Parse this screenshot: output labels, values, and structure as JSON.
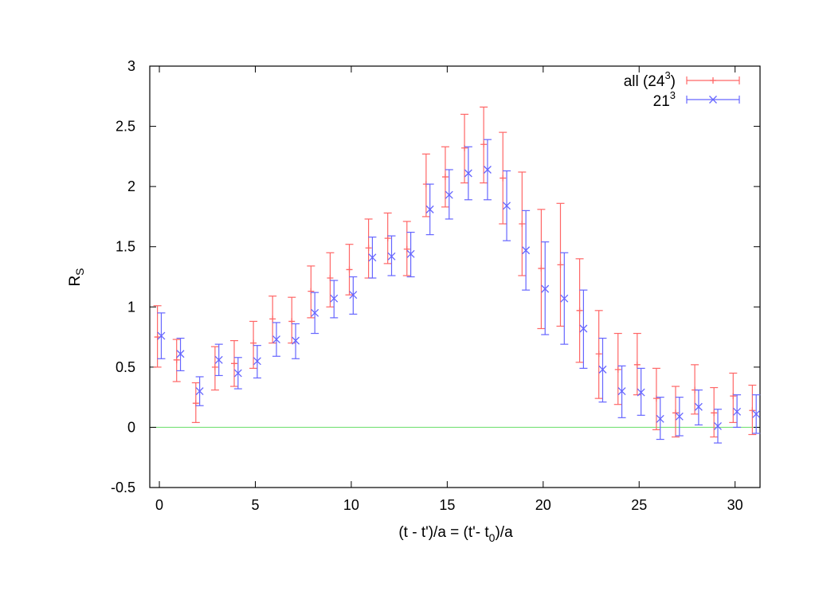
{
  "chart_data": {
    "type": "scatter",
    "title": "",
    "xlabel": {
      "main": "(t - t')/a = (t'- t",
      "sub": "0",
      "tail": ")/a"
    },
    "ylabel": {
      "main": "R",
      "sub": "S"
    },
    "xlim": [
      -0.5,
      31.3
    ],
    "ylim": [
      -0.5,
      3
    ],
    "xticks": [
      0,
      5,
      10,
      15,
      20,
      25,
      30
    ],
    "yticks": [
      -0.5,
      0,
      0.5,
      1,
      1.5,
      2,
      2.5,
      3
    ],
    "grid": false,
    "legend_position": "top-right",
    "reference_line": {
      "y": 0,
      "color": "#66dd66"
    },
    "series": [
      {
        "name": "all (24³)",
        "legend": {
          "pre": "all (24",
          "sup": "3",
          "post": ")"
        },
        "color": "#ff6666",
        "marker": "plus",
        "points": [
          {
            "x": -0.1,
            "y": 0.75,
            "lo": 0.5,
            "hi": 1.01
          },
          {
            "x": 0.9,
            "y": 0.56,
            "lo": 0.38,
            "hi": 0.73
          },
          {
            "x": 1.9,
            "y": 0.2,
            "lo": 0.04,
            "hi": 0.37
          },
          {
            "x": 2.9,
            "y": 0.5,
            "lo": 0.31,
            "hi": 0.67
          },
          {
            "x": 3.9,
            "y": 0.53,
            "lo": 0.34,
            "hi": 0.72
          },
          {
            "x": 4.9,
            "y": 0.7,
            "lo": 0.49,
            "hi": 0.88
          },
          {
            "x": 5.9,
            "y": 0.9,
            "lo": 0.7,
            "hi": 1.09
          },
          {
            "x": 6.9,
            "y": 0.88,
            "lo": 0.7,
            "hi": 1.08
          },
          {
            "x": 7.9,
            "y": 1.13,
            "lo": 0.91,
            "hi": 1.34
          },
          {
            "x": 8.9,
            "y": 1.24,
            "lo": 1.0,
            "hi": 1.45
          },
          {
            "x": 9.9,
            "y": 1.31,
            "lo": 1.1,
            "hi": 1.52
          },
          {
            "x": 10.9,
            "y": 1.49,
            "lo": 1.24,
            "hi": 1.73
          },
          {
            "x": 11.9,
            "y": 1.57,
            "lo": 1.36,
            "hi": 1.78
          },
          {
            "x": 12.9,
            "y": 1.48,
            "lo": 1.26,
            "hi": 1.71
          },
          {
            "x": 13.9,
            "y": 2.02,
            "lo": 1.75,
            "hi": 2.27
          },
          {
            "x": 14.9,
            "y": 2.08,
            "lo": 1.83,
            "hi": 2.33
          },
          {
            "x": 15.9,
            "y": 2.32,
            "lo": 2.03,
            "hi": 2.6
          },
          {
            "x": 16.9,
            "y": 2.35,
            "lo": 2.03,
            "hi": 2.66
          },
          {
            "x": 17.9,
            "y": 2.07,
            "lo": 1.69,
            "hi": 2.45
          },
          {
            "x": 18.9,
            "y": 1.69,
            "lo": 1.26,
            "hi": 2.12
          },
          {
            "x": 19.9,
            "y": 1.32,
            "lo": 0.82,
            "hi": 1.81
          },
          {
            "x": 20.9,
            "y": 1.35,
            "lo": 0.84,
            "hi": 1.86
          },
          {
            "x": 21.9,
            "y": 0.97,
            "lo": 0.54,
            "hi": 1.4
          },
          {
            "x": 22.9,
            "y": 0.61,
            "lo": 0.24,
            "hi": 0.97
          },
          {
            "x": 23.9,
            "y": 0.48,
            "lo": 0.19,
            "hi": 0.78
          },
          {
            "x": 24.9,
            "y": 0.52,
            "lo": 0.27,
            "hi": 0.78
          },
          {
            "x": 25.9,
            "y": 0.24,
            "lo": -0.02,
            "hi": 0.49
          },
          {
            "x": 26.9,
            "y": 0.12,
            "lo": -0.08,
            "hi": 0.34
          },
          {
            "x": 27.9,
            "y": 0.31,
            "lo": 0.11,
            "hi": 0.52
          },
          {
            "x": 28.9,
            "y": 0.12,
            "lo": -0.08,
            "hi": 0.33
          },
          {
            "x": 29.9,
            "y": 0.26,
            "lo": 0.04,
            "hi": 0.45
          },
          {
            "x": 30.9,
            "y": 0.14,
            "lo": -0.06,
            "hi": 0.35
          }
        ]
      },
      {
        "name": "21³",
        "legend": {
          "pre": "21",
          "sup": "3",
          "post": ""
        },
        "color": "#6666ff",
        "marker": "x",
        "points": [
          {
            "x": 0.1,
            "y": 0.76,
            "lo": 0.57,
            "hi": 0.95
          },
          {
            "x": 1.1,
            "y": 0.61,
            "lo": 0.47,
            "hi": 0.74
          },
          {
            "x": 2.1,
            "y": 0.3,
            "lo": 0.18,
            "hi": 0.42
          },
          {
            "x": 3.1,
            "y": 0.56,
            "lo": 0.43,
            "hi": 0.69
          },
          {
            "x": 4.1,
            "y": 0.45,
            "lo": 0.32,
            "hi": 0.58
          },
          {
            "x": 5.1,
            "y": 0.55,
            "lo": 0.41,
            "hi": 0.68
          },
          {
            "x": 6.1,
            "y": 0.73,
            "lo": 0.59,
            "hi": 0.87
          },
          {
            "x": 7.1,
            "y": 0.72,
            "lo": 0.57,
            "hi": 0.86
          },
          {
            "x": 8.1,
            "y": 0.95,
            "lo": 0.78,
            "hi": 1.12
          },
          {
            "x": 9.1,
            "y": 1.07,
            "lo": 0.91,
            "hi": 1.22
          },
          {
            "x": 10.1,
            "y": 1.1,
            "lo": 0.94,
            "hi": 1.25
          },
          {
            "x": 11.1,
            "y": 1.41,
            "lo": 1.24,
            "hi": 1.58
          },
          {
            "x": 12.1,
            "y": 1.42,
            "lo": 1.26,
            "hi": 1.59
          },
          {
            "x": 13.1,
            "y": 1.44,
            "lo": 1.25,
            "hi": 1.62
          },
          {
            "x": 14.1,
            "y": 1.81,
            "lo": 1.6,
            "hi": 2.02
          },
          {
            "x": 15.1,
            "y": 1.93,
            "lo": 1.73,
            "hi": 2.14
          },
          {
            "x": 16.1,
            "y": 2.11,
            "lo": 1.89,
            "hi": 2.33
          },
          {
            "x": 17.1,
            "y": 2.14,
            "lo": 1.89,
            "hi": 2.39
          },
          {
            "x": 18.1,
            "y": 1.84,
            "lo": 1.55,
            "hi": 2.13
          },
          {
            "x": 19.1,
            "y": 1.47,
            "lo": 1.14,
            "hi": 1.8
          },
          {
            "x": 20.1,
            "y": 1.15,
            "lo": 0.77,
            "hi": 1.54
          },
          {
            "x": 21.1,
            "y": 1.07,
            "lo": 0.69,
            "hi": 1.45
          },
          {
            "x": 22.1,
            "y": 0.82,
            "lo": 0.49,
            "hi": 1.14
          },
          {
            "x": 23.1,
            "y": 0.48,
            "lo": 0.21,
            "hi": 0.74
          },
          {
            "x": 24.1,
            "y": 0.3,
            "lo": 0.08,
            "hi": 0.51
          },
          {
            "x": 25.1,
            "y": 0.29,
            "lo": 0.1,
            "hi": 0.49
          },
          {
            "x": 26.1,
            "y": 0.07,
            "lo": -0.1,
            "hi": 0.25
          },
          {
            "x": 27.1,
            "y": 0.09,
            "lo": -0.07,
            "hi": 0.25
          },
          {
            "x": 28.1,
            "y": 0.17,
            "lo": 0.02,
            "hi": 0.31
          },
          {
            "x": 29.1,
            "y": 0.01,
            "lo": -0.13,
            "hi": 0.15
          },
          {
            "x": 30.1,
            "y": 0.13,
            "lo": 0.0,
            "hi": 0.27
          },
          {
            "x": 31.1,
            "y": 0.11,
            "lo": -0.05,
            "hi": 0.27
          }
        ]
      }
    ]
  }
}
